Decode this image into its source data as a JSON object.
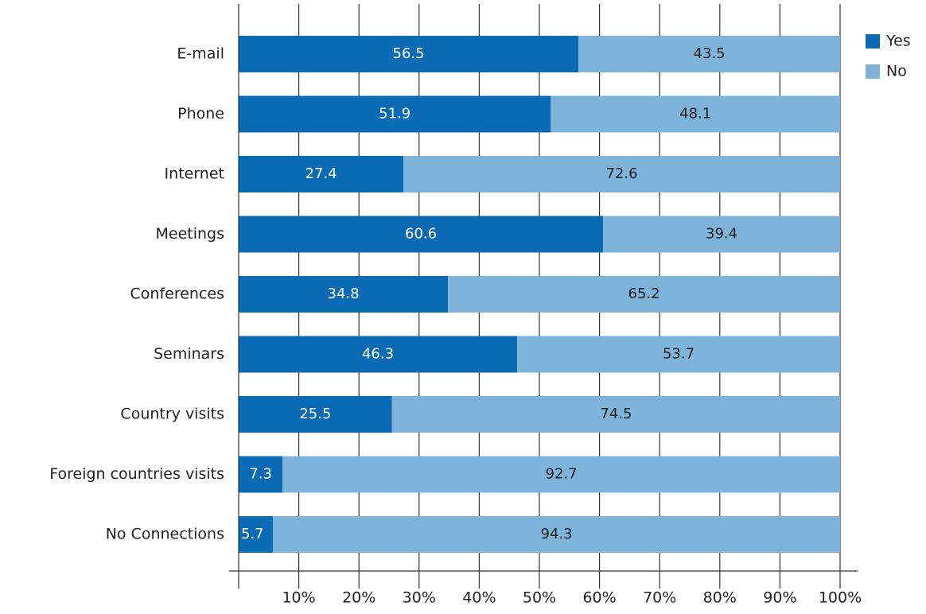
{
  "chart_data": {
    "type": "stacked_bar_horizontal",
    "categories": [
      "E-mail",
      "Phone",
      "Internet",
      "Meetings",
      "Conferences",
      "Seminars",
      "Country visits",
      "Foreign countries visits",
      "No Connections"
    ],
    "series": [
      {
        "name": "Yes",
        "color": "#0a6ab4",
        "values": [
          56.5,
          51.9,
          27.4,
          60.6,
          34.8,
          46.3,
          25.5,
          7.3,
          5.7
        ]
      },
      {
        "name": "No",
        "color": "#7fb4da",
        "values": [
          43.5,
          48.1,
          72.6,
          39.4,
          65.2,
          53.7,
          74.5,
          92.7,
          94.3
        ]
      }
    ],
    "xlim": [
      0,
      100
    ],
    "xticks": [
      {
        "value": 10,
        "label": "10%"
      },
      {
        "value": 20,
        "label": "20%"
      },
      {
        "value": 30,
        "label": "30%"
      },
      {
        "value": 40,
        "label": "40%"
      },
      {
        "value": 50,
        "label": "50%"
      },
      {
        "value": 60,
        "label": "60%"
      },
      {
        "value": 70,
        "label": "70%"
      },
      {
        "value": 80,
        "label": "80%"
      },
      {
        "value": 90,
        "label": "90%"
      },
      {
        "value": 100,
        "label": "100%"
      }
    ],
    "grid": true,
    "legend": "top-right"
  }
}
